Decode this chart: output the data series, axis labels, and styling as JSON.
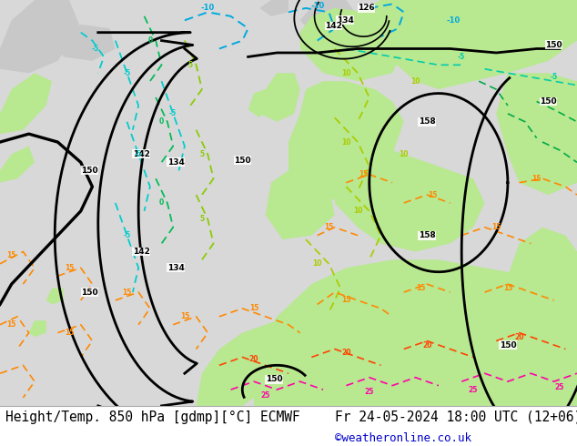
{
  "title_left": "Height/Temp. 850 hPa [gdmp][°C] ECMWF",
  "title_right": "Fr 24-05-2024 18:00 UTC (12+06)",
  "credit": "©weatheronline.co.uk",
  "bg_color": "#ffffff",
  "title_color": "#000000",
  "title_font_size": 10.5,
  "credit_color": "#0000cc",
  "credit_font_size": 9,
  "fig_width": 6.34,
  "fig_height": 4.9,
  "ocean_color": "#d8d8d8",
  "land_color": "#b8e890",
  "ice_color": "#c8c8c8",
  "contour_lw": 2.0,
  "temp_lw": 1.4
}
